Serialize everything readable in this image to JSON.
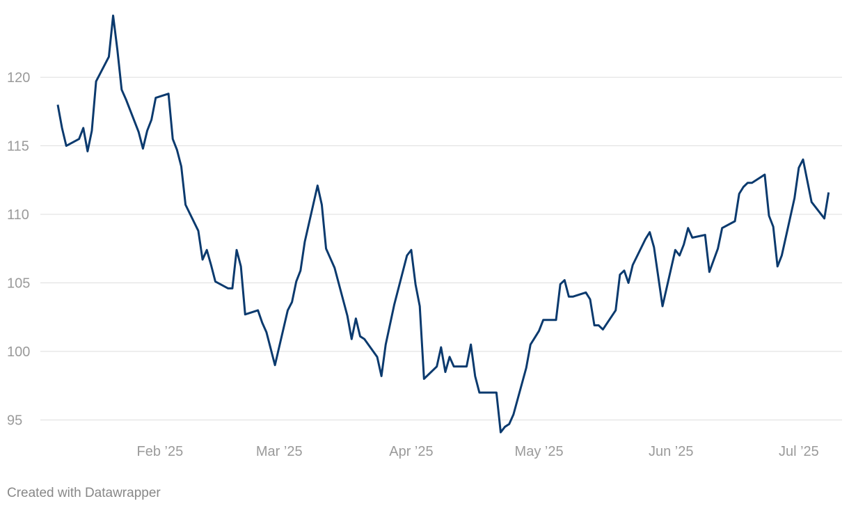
{
  "chart_data": {
    "type": "line",
    "x": [
      8,
      9,
      10,
      13,
      14,
      15,
      16,
      17,
      20,
      21,
      22,
      23,
      24,
      27,
      28,
      29,
      30,
      31,
      34,
      35,
      36,
      37,
      38,
      41,
      42,
      43,
      44,
      45,
      48,
      49,
      50,
      51,
      52,
      55,
      56,
      57,
      58,
      59,
      62,
      63,
      64,
      65,
      66,
      69,
      70,
      71,
      72,
      73,
      76,
      77,
      78,
      79,
      80,
      83,
      84,
      85,
      87,
      90,
      91,
      92,
      93,
      94,
      97,
      98,
      99,
      100,
      101,
      104,
      105,
      106,
      107,
      111,
      112,
      113,
      114,
      115,
      118,
      119,
      120,
      121,
      122,
      125,
      126,
      127,
      128,
      129,
      132,
      133,
      134,
      135,
      136,
      139,
      140,
      141,
      142,
      143,
      146,
      147,
      148,
      150,
      153,
      154,
      155,
      156,
      157,
      160,
      161,
      163,
      164,
      167,
      168,
      169,
      170,
      171,
      174,
      175,
      176,
      177,
      178,
      181,
      182,
      183,
      185,
      188,
      189
    ],
    "series": [
      {
        "color": "#0b3a6e",
        "values": [
          118.0,
          116.3,
          115.0,
          115.5,
          116.3,
          114.6,
          116.1,
          119.7,
          121.5,
          124.5,
          122.0,
          119.1,
          118.4,
          116.0,
          114.8,
          116.1,
          116.9,
          118.5,
          118.8,
          115.5,
          114.7,
          113.5,
          110.7,
          108.8,
          106.7,
          107.4,
          106.3,
          105.1,
          104.6,
          104.6,
          107.4,
          106.2,
          102.7,
          103.0,
          102.1,
          101.4,
          100.2,
          99.0,
          103.0,
          103.6,
          105.1,
          105.9,
          108.0,
          112.1,
          110.7,
          107.5,
          106.8,
          106.1,
          102.6,
          100.9,
          102.4,
          101.1,
          100.9,
          99.6,
          98.2,
          100.5,
          103.4,
          107.0,
          107.4,
          104.9,
          103.3,
          98.0,
          98.9,
          100.3,
          98.5,
          99.6,
          98.9,
          98.9,
          100.5,
          98.2,
          97.0,
          97.0,
          94.1,
          94.5,
          94.7,
          95.4,
          98.8,
          100.5,
          101.0,
          101.5,
          102.3,
          102.3,
          104.9,
          105.2,
          104.0,
          104.0,
          104.3,
          103.8,
          101.9,
          101.9,
          101.6,
          103.0,
          105.6,
          105.9,
          105.0,
          106.3,
          108.2,
          108.7,
          107.6,
          103.3,
          107.4,
          107.0,
          107.8,
          109.0,
          108.3,
          108.5,
          105.8,
          107.5,
          109.0,
          109.5,
          111.5,
          112.0,
          112.3,
          112.3,
          112.9,
          109.9,
          109.1,
          106.2,
          107.0,
          111.2,
          113.4,
          114.0,
          110.9,
          109.7,
          111.6
        ]
      }
    ],
    "xlim": [
      8,
      189
    ],
    "xticks": [
      {
        "value": 32,
        "label": "Feb ’25"
      },
      {
        "value": 60,
        "label": "Mar ’25"
      },
      {
        "value": 91,
        "label": "Apr ’25"
      },
      {
        "value": 121,
        "label": "May ’25"
      },
      {
        "value": 152,
        "label": "Jun ’25"
      },
      {
        "value": 182,
        "label": "Jul ’25"
      }
    ],
    "ylim": [
      93.8,
      124.7
    ],
    "yticks": [
      95,
      100,
      105,
      110,
      115,
      120
    ],
    "grid": true,
    "footer": "Created with Datawrapper"
  }
}
